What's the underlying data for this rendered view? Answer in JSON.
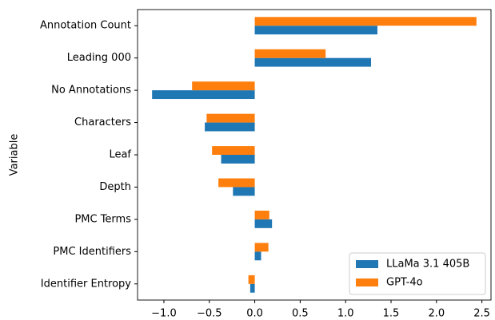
{
  "chart_data": {
    "type": "barh",
    "ylabel": "Variable",
    "categories": [
      "Annotation Count",
      "Leading 000",
      "No Annotations",
      "Characters",
      "Leaf",
      "Depth",
      "PMC Terms",
      "PMC Identifiers",
      "Identifier Entropy"
    ],
    "series": [
      {
        "name": "LLaMa 3.1 405B",
        "color": "#1f77b4",
        "values": [
          1.35,
          1.28,
          -1.13,
          -0.55,
          -0.37,
          -0.24,
          0.19,
          0.07,
          -0.05
        ]
      },
      {
        "name": "GPT-4o",
        "color": "#ff7f0e",
        "values": [
          2.44,
          0.78,
          -0.69,
          -0.53,
          -0.47,
          -0.4,
          0.16,
          0.15,
          -0.07
        ]
      }
    ],
    "xlim": [
      -1.29,
      2.6
    ],
    "xticks": [
      {
        "value": -1.0,
        "label": "−1.0"
      },
      {
        "value": -0.5,
        "label": "−0.5"
      },
      {
        "value": 0.0,
        "label": "0.0"
      },
      {
        "value": 0.5,
        "label": "0.5"
      },
      {
        "value": 1.0,
        "label": "1.0"
      },
      {
        "value": 1.5,
        "label": "1.5"
      },
      {
        "value": 2.0,
        "label": "2.0"
      },
      {
        "value": 2.5,
        "label": "2.5"
      }
    ],
    "legend": "lower right"
  }
}
